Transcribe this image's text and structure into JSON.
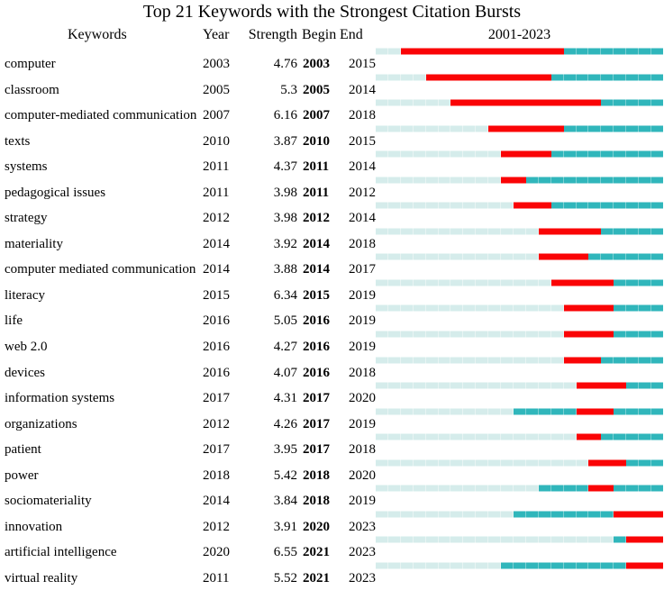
{
  "chart_data": {
    "type": "table",
    "subtype": "citation-burst-timeline",
    "title": "Top 21 Keywords with the Strongest Citation Bursts",
    "columns": {
      "keywords": "Keywords",
      "year": "Year",
      "strength": "Strength",
      "begin": "Begin",
      "end": "End",
      "period": "2001-2023"
    },
    "timeline_start": 2001,
    "timeline_end": 2023,
    "rows": [
      {
        "keyword": "computer",
        "year": "2003",
        "strength": "4.76",
        "begin": "2003",
        "end": "2015"
      },
      {
        "keyword": "classroom",
        "year": "2005",
        "strength": "5.3",
        "begin": "2005",
        "end": "2014"
      },
      {
        "keyword": "computer-mediated communication",
        "year": "2007",
        "strength": "6.16",
        "begin": "2007",
        "end": "2018"
      },
      {
        "keyword": "texts",
        "year": "2010",
        "strength": "3.87",
        "begin": "2010",
        "end": "2015"
      },
      {
        "keyword": "systems",
        "year": "2011",
        "strength": "4.37",
        "begin": "2011",
        "end": "2014"
      },
      {
        "keyword": "pedagogical issues",
        "year": "2011",
        "strength": "3.98",
        "begin": "2011",
        "end": "2012"
      },
      {
        "keyword": "strategy",
        "year": "2012",
        "strength": "3.98",
        "begin": "2012",
        "end": "2014"
      },
      {
        "keyword": "materiality",
        "year": "2014",
        "strength": "3.92",
        "begin": "2014",
        "end": "2018"
      },
      {
        "keyword": "computer mediated communication",
        "year": "2014",
        "strength": "3.88",
        "begin": "2014",
        "end": "2017"
      },
      {
        "keyword": "literacy",
        "year": "2015",
        "strength": "6.34",
        "begin": "2015",
        "end": "2019"
      },
      {
        "keyword": "life",
        "year": "2016",
        "strength": "5.05",
        "begin": "2016",
        "end": "2019"
      },
      {
        "keyword": "web 2.0",
        "year": "2016",
        "strength": "4.27",
        "begin": "2016",
        "end": "2019"
      },
      {
        "keyword": "devices",
        "year": "2016",
        "strength": "4.07",
        "begin": "2016",
        "end": "2018"
      },
      {
        "keyword": "information systems",
        "year": "2017",
        "strength": "4.31",
        "begin": "2017",
        "end": "2020"
      },
      {
        "keyword": "organizations",
        "year": "2012",
        "strength": "4.26",
        "begin": "2017",
        "end": "2019"
      },
      {
        "keyword": "patient",
        "year": "2017",
        "strength": "3.95",
        "begin": "2017",
        "end": "2018"
      },
      {
        "keyword": "power",
        "year": "2018",
        "strength": "5.42",
        "begin": "2018",
        "end": "2020"
      },
      {
        "keyword": "sociomateriality",
        "year": "2014",
        "strength": "3.84",
        "begin": "2018",
        "end": "2019"
      },
      {
        "keyword": "innovation",
        "year": "2012",
        "strength": "3.91",
        "begin": "2020",
        "end": "2023"
      },
      {
        "keyword": "artificial intelligence",
        "year": "2020",
        "strength": "6.55",
        "begin": "2021",
        "end": "2023"
      },
      {
        "keyword": "virtual reality",
        "year": "2011",
        "strength": "5.52",
        "begin": "2021",
        "end": "2023"
      }
    ]
  },
  "colors": {
    "burst": "#fa0406",
    "active": "#30b6bb",
    "active_gap": "#7ccfd2",
    "inactive": "#d5eceb",
    "inactive_gap": "#e8f4f3",
    "text": "#000000",
    "background": "#ffffff"
  }
}
